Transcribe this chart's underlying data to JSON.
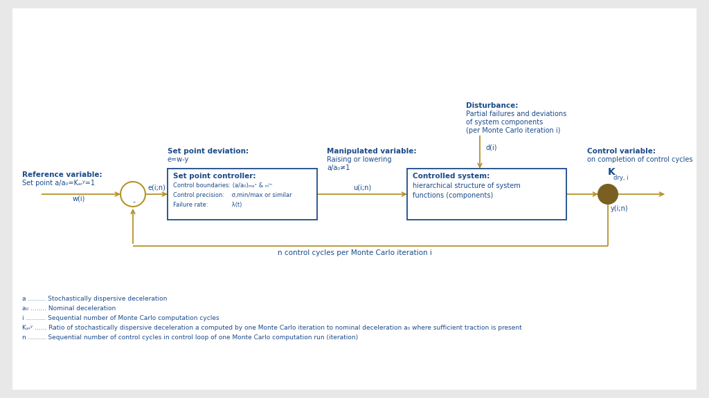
{
  "bg_color": "#e8e8e8",
  "inner_bg": "#ffffff",
  "blue": "#1a4a8a",
  "gold": "#b5922a",
  "circle_color": "#7a6020",
  "ref_label1": "Reference variable:",
  "ref_label2": "Set point a/a₀=Kₐᵣʸ=1",
  "ref_w": "w(i)",
  "spd_label": "Set point deviation:",
  "spd_eq": "e=w-y",
  "mv_label": "Manipulated variable:",
  "mv_sub1": "Raising or lowering",
  "mv_sub2": "a/a₀≠1",
  "dist_label": "Disturbance:",
  "dist_sub1": "Partial failures and deviations",
  "dist_sub2": "of system components",
  "dist_sub3": "(per Monte Carlo iteration i)",
  "dist_arrow_label": "d(i)",
  "ctrl_label": "Control variable:",
  "ctrl_sub": "on completion of control cycles",
  "ctrl_k": "K",
  "ctrl_k_sub": "dry, i",
  "spc_title": "Set point controller:",
  "spc_line1": "Control boundaries: (a/a₀)ₘₐˣ & ₘᴵⁿ",
  "spc_line2": "Control precision:    σ,min/max or similar",
  "spc_line3": "Failure rate:             λ(t)",
  "cs_title": "Controlled system:",
  "cs_line1": "hierarchical structure of system",
  "cs_line2": "functions (components)",
  "e_label": "e(i;n)",
  "u_label": "u(i;n)",
  "y_label": "y(i;n)",
  "minus_label": "-",
  "feedback_label": "n control cycles per Monte Carlo iteration i",
  "legend1": "a ......... Stochastically dispersive deceleration",
  "legend2": "a₀ ........ Nominal deceleration",
  "legend3": "i .......... Sequential number of Monte Carlo computation cycles",
  "legend4": "Kₐᵣʸ ...... Ratio of stochastically dispersive deceleration a computed by one Monte Carlo iteration to nominal deceleration a₀ where sufficient traction is present",
  "legend5": "n ......... Sequential number of control cycles in control loop of one Monte Carlo computation run (iteration)"
}
